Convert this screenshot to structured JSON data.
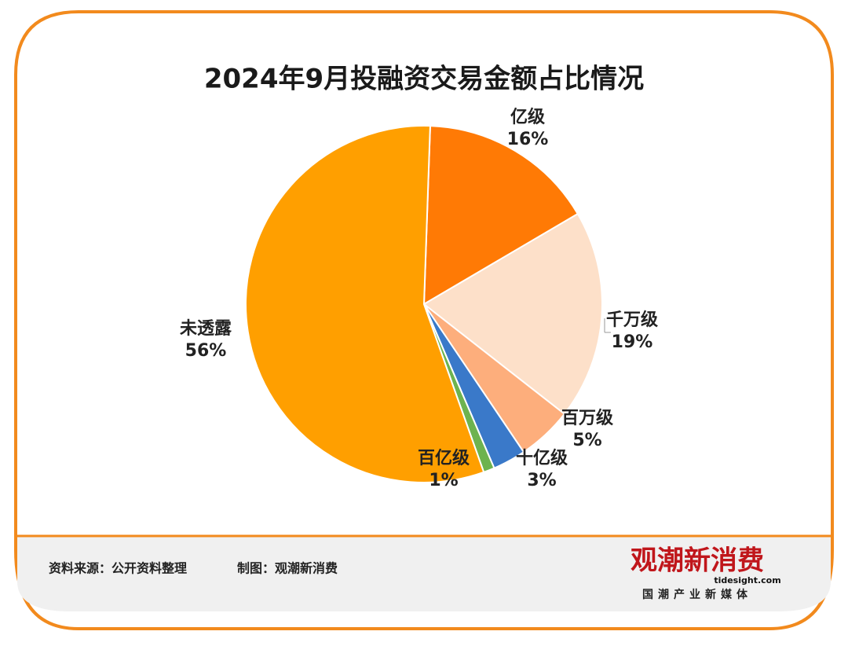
{
  "chart_data": {
    "type": "pie",
    "title": "2024年9月投融资交易金额占比情况",
    "categories": [
      "亿级",
      "千万级",
      "百万级",
      "十亿级",
      "百亿级",
      "未透露"
    ],
    "values": [
      16,
      19,
      5,
      3,
      1,
      56
    ],
    "value_labels": [
      "16%",
      "19%",
      "5%",
      "3%",
      "1%",
      "56%"
    ],
    "colors": [
      "#ff7a05",
      "#fde0c9",
      "#fdae7c",
      "#3a79c9",
      "#6db34f",
      "#ff9f00"
    ]
  },
  "footer": {
    "source": "资料来源：公开资料整理",
    "maker": "制图：观潮新消费",
    "logo": {
      "name": "观潮新消费",
      "site": "tidesight.com",
      "slogan": "国潮产业新媒体"
    }
  }
}
